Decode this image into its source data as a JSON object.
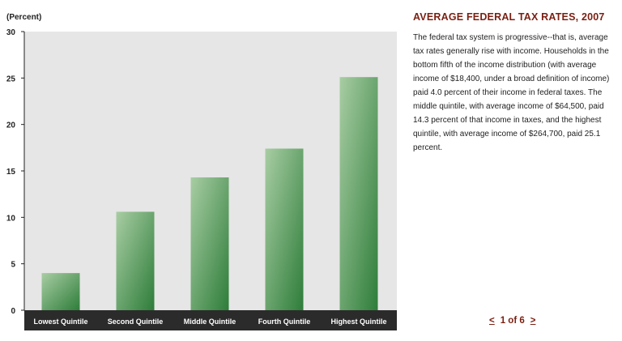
{
  "chart_data": {
    "type": "bar",
    "ylabel": "(Percent)",
    "ylim": [
      0,
      30
    ],
    "yticks": [
      0,
      5,
      10,
      15,
      20,
      25,
      30
    ],
    "categories": [
      "Lowest Quintile",
      "Second Quintile",
      "Middle Quintile",
      "Fourth Quintile",
      "Highest Quintile"
    ],
    "values": [
      4.0,
      10.6,
      14.3,
      17.4,
      25.1
    ],
    "grid": false,
    "colors": {
      "plot_background": "#e6e6e6",
      "bar_dark": "#2e7d3a",
      "bar_light": "#a8cda3",
      "category_band": "#2b2b2b",
      "axis": "#222222"
    }
  },
  "side_panel": {
    "title": "AVERAGE FEDERAL TAX RATES, 2007",
    "body": "The federal tax system is progressive--that is, average tax rates generally rise with income. Households in the bottom fifth of the income distribution (with average income of $18,400, under a broad definition of income) paid 4.0 percent of their income in federal taxes. The middle quintile, with average income of $64,500, paid 14.3 percent of that income in taxes, and the highest quintile, with average income of $264,700, paid 25.1 percent.",
    "title_color": "#7a1f12"
  },
  "pager": {
    "prev": "<",
    "label": "1 of 6",
    "next": ">"
  }
}
